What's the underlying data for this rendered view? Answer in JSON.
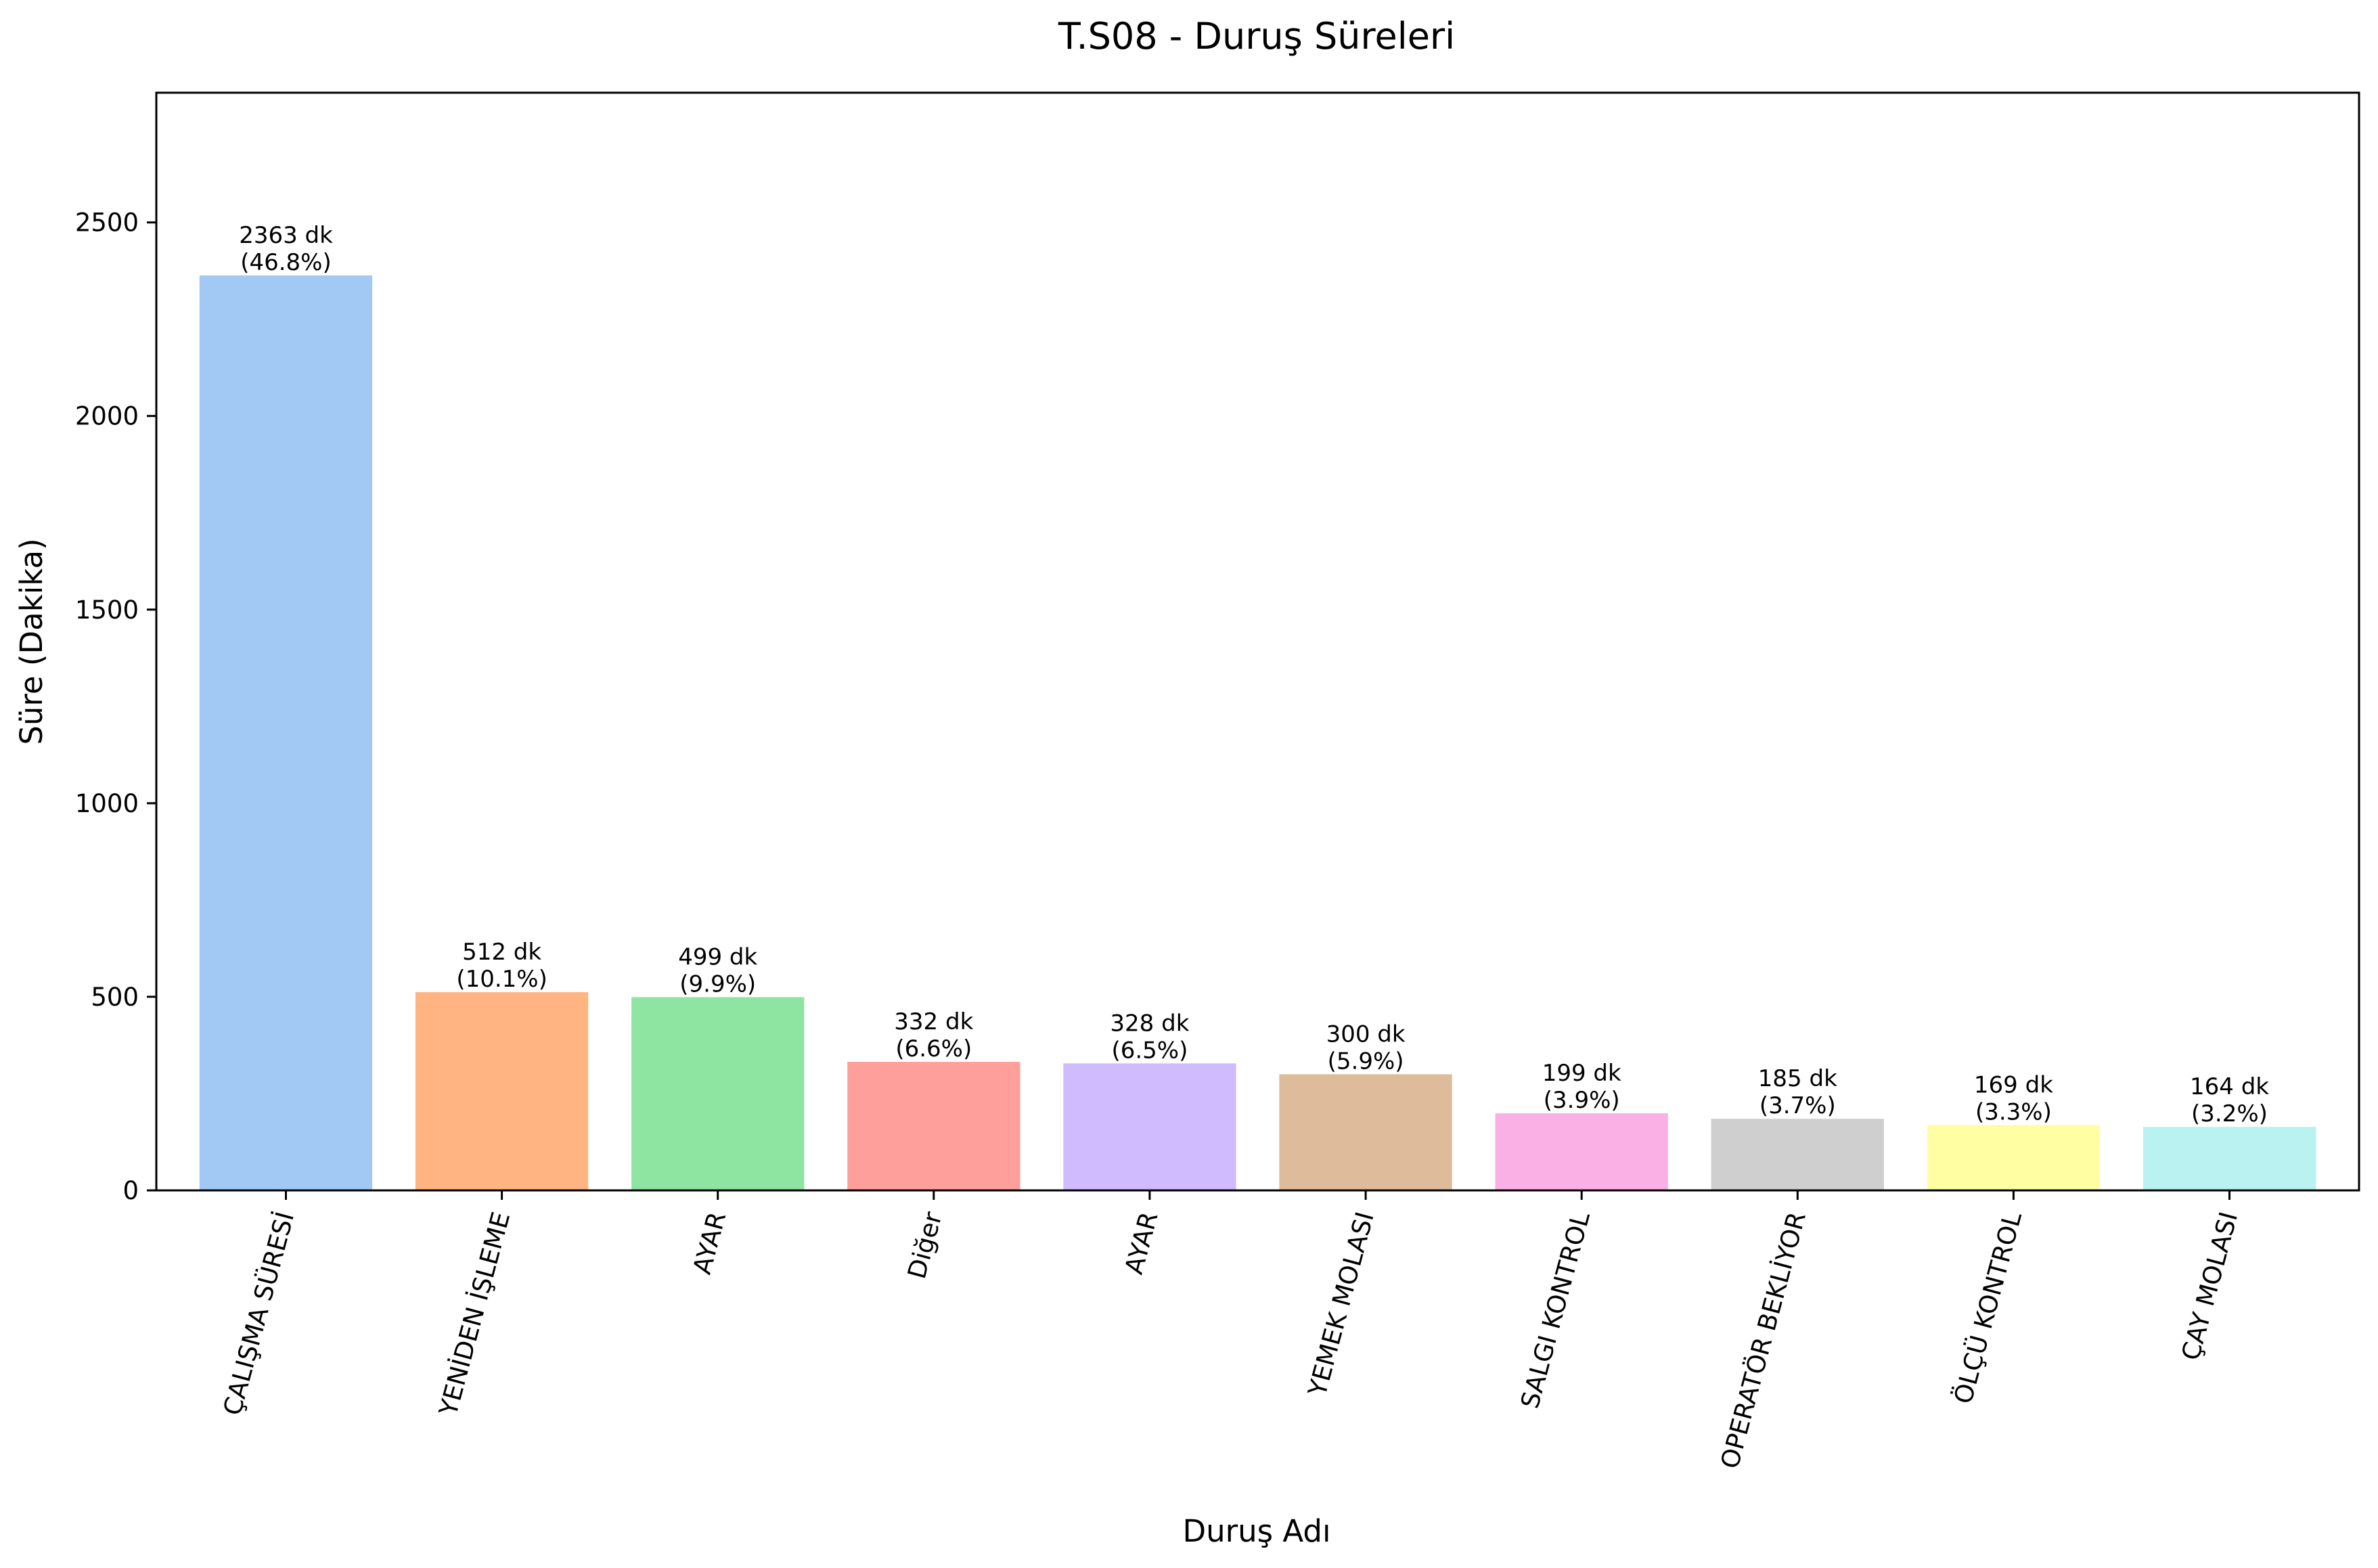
{
  "chart_data": {
    "type": "bar",
    "title": "T.S08 - Duruş Süreleri",
    "xlabel": "Duruş Adı",
    "ylabel": "Süre (Dakika)",
    "ylim": [
      0,
      2835
    ],
    "yticks": [
      0,
      500,
      1000,
      1500,
      2000,
      2500
    ],
    "grid": false,
    "categories": [
      "ÇALIŞMA SÜRESİ",
      "YENİDEN İŞLEME",
      "AYAR",
      "Diğer",
      "AYAR",
      "YEMEK MOLASI",
      "SALGI KONTROL",
      "OPERATÖR BEKLİYOR",
      "ÖLÇÜ KONTROL",
      "ÇAY MOLASI"
    ],
    "values": [
      2363,
      512,
      499,
      332,
      328,
      300,
      199,
      185,
      169,
      164
    ],
    "value_labels": [
      "2363 dk",
      "512 dk",
      "499 dk",
      "332 dk",
      "328 dk",
      "300 dk",
      "199 dk",
      "185 dk",
      "169 dk",
      "164 dk"
    ],
    "percent_labels": [
      "(46.8%)",
      "(10.1%)",
      "(9.9%)",
      "(6.6%)",
      "(6.5%)",
      "(5.9%)",
      "(3.9%)",
      "(3.7%)",
      "(3.3%)",
      "(3.2%)"
    ],
    "colors": [
      "#a1c9f4",
      "#ffb482",
      "#8de5a1",
      "#ff9f9b",
      "#d0bbff",
      "#debb9b",
      "#fab0e4",
      "#cfcfcf",
      "#fffea3",
      "#b9f2f0"
    ]
  }
}
